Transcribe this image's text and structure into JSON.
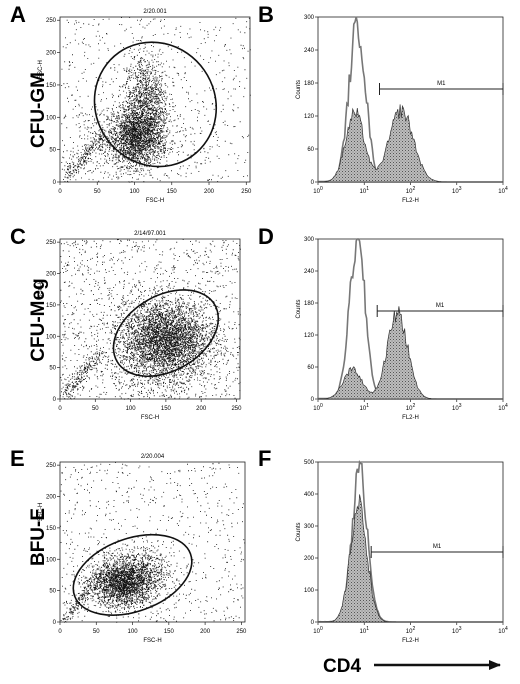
{
  "figure": {
    "arrow_label": "CD4"
  },
  "chart_data": [
    {
      "id": "A",
      "type": "scatter",
      "row_label": "CFU-GM",
      "gate_label": "2/20.001",
      "xlabel": "FSC-H",
      "ylabel": "SSC-H",
      "xlim": [
        0,
        255
      ],
      "ylim": [
        0,
        255
      ],
      "xticks": [
        "0",
        "50",
        "100",
        "150",
        "200",
        "250"
      ],
      "yticks": [
        "0",
        "50",
        "100",
        "150",
        "200",
        "250"
      ],
      "clusters": [
        {
          "cx": 100,
          "cy": 70,
          "sx": 18,
          "sy": 22,
          "n": 1700
        },
        {
          "cx": 115,
          "cy": 120,
          "sx": 15,
          "sy": 40,
          "n": 1300
        },
        {
          "cx": 90,
          "cy": 60,
          "sx": 40,
          "sy": 30,
          "n": 500
        }
      ],
      "background_points": 650,
      "gate_ellipse": {
        "cx": 128,
        "cy": 120,
        "rx": 80,
        "ry": 98,
        "rot": 35
      }
    },
    {
      "id": "B",
      "type": "histogram",
      "gate_label": "M1",
      "xlabel": "FL2-H",
      "ylabel": "Counts",
      "xlim": [
        0,
        4
      ],
      "xscale": "log",
      "ylim": [
        0,
        300
      ],
      "xticks": [
        "10^0",
        "10^1",
        "10^2",
        "10^3",
        "10^4"
      ],
      "yticks": [
        "0",
        "60",
        "120",
        "180",
        "240",
        "300"
      ],
      "marker_range": [
        1.33,
        4.0
      ],
      "series": [
        {
          "style": "outline",
          "peaks": [
            {
              "mu": 0.85,
              "sd": 0.18,
              "h": 285
            }
          ],
          "tail": 0.02
        },
        {
          "style": "filled",
          "peaks": [
            {
              "mu": 0.8,
              "sd": 0.2,
              "h": 125
            },
            {
              "mu": 1.8,
              "sd": 0.26,
              "h": 130
            }
          ]
        }
      ]
    },
    {
      "id": "C",
      "type": "scatter",
      "row_label": "CFU-Meg",
      "gate_label": "2/14/97.001",
      "xlabel": "FSC-H",
      "ylabel": "SSC-H",
      "xlim": [
        0,
        255
      ],
      "ylim": [
        0,
        255
      ],
      "xticks": [
        "0",
        "50",
        "100",
        "150",
        "200",
        "250"
      ],
      "yticks": [
        "0",
        "50",
        "100",
        "150",
        "200",
        "250"
      ],
      "clusters": [
        {
          "cx": 150,
          "cy": 95,
          "sx": 30,
          "sy": 30,
          "n": 3200
        },
        {
          "cx": 140,
          "cy": 85,
          "sx": 45,
          "sy": 40,
          "n": 900
        }
      ],
      "background_points": 1200,
      "gate_ellipse": {
        "cx": 150,
        "cy": 105,
        "rx": 80,
        "ry": 60,
        "rot": 30
      }
    },
    {
      "id": "D",
      "type": "histogram",
      "gate_label": "M1",
      "xlabel": "FL2-H",
      "ylabel": "Counts",
      "xlim": [
        0,
        4
      ],
      "xscale": "log",
      "ylim": [
        0,
        300
      ],
      "xticks": [
        "10^0",
        "10^1",
        "10^2",
        "10^3",
        "10^4"
      ],
      "yticks": [
        "0",
        "60",
        "120",
        "180",
        "240",
        "300"
      ],
      "marker_range": [
        1.28,
        4.0
      ],
      "series": [
        {
          "style": "outline",
          "peaks": [
            {
              "mu": 0.85,
              "sd": 0.17,
              "h": 295
            }
          ],
          "tail": 0.02
        },
        {
          "style": "filled",
          "peaks": [
            {
              "mu": 0.75,
              "sd": 0.2,
              "h": 55
            },
            {
              "mu": 1.72,
              "sd": 0.22,
              "h": 160
            }
          ]
        }
      ]
    },
    {
      "id": "E",
      "type": "scatter",
      "row_label": "BFU-E",
      "gate_label": "2/20.004",
      "xlabel": "FSC-H",
      "ylabel": "SSC-H",
      "xlim": [
        0,
        255
      ],
      "ylim": [
        0,
        255
      ],
      "xticks": [
        "0",
        "50",
        "100",
        "150",
        "200",
        "250"
      ],
      "yticks": [
        "0",
        "50",
        "100",
        "150",
        "200",
        "250"
      ],
      "clusters": [
        {
          "cx": 85,
          "cy": 60,
          "sx": 22,
          "sy": 18,
          "n": 1900
        },
        {
          "cx": 105,
          "cy": 80,
          "sx": 25,
          "sy": 20,
          "n": 800
        }
      ],
      "background_points": 700,
      "gate_ellipse": {
        "cx": 100,
        "cy": 75,
        "rx": 85,
        "ry": 58,
        "rot": 20
      }
    },
    {
      "id": "F",
      "type": "histogram",
      "gate_label": "M1",
      "xlabel": "FL2-H",
      "ylabel": "Counts",
      "xlim": [
        0,
        4
      ],
      "xscale": "log",
      "ylim": [
        0,
        500
      ],
      "xticks": [
        "10^0",
        "10^1",
        "10^2",
        "10^3",
        "10^4"
      ],
      "yticks": [
        "0",
        "100",
        "200",
        "300",
        "400",
        "500"
      ],
      "marker_range": [
        1.15,
        4.0
      ],
      "series": [
        {
          "style": "outline",
          "peaks": [
            {
              "mu": 0.9,
              "sd": 0.17,
              "h": 470
            }
          ],
          "tail": 0.02
        },
        {
          "style": "filled",
          "peaks": [
            {
              "mu": 0.88,
              "sd": 0.18,
              "h": 365
            }
          ]
        }
      ]
    }
  ]
}
